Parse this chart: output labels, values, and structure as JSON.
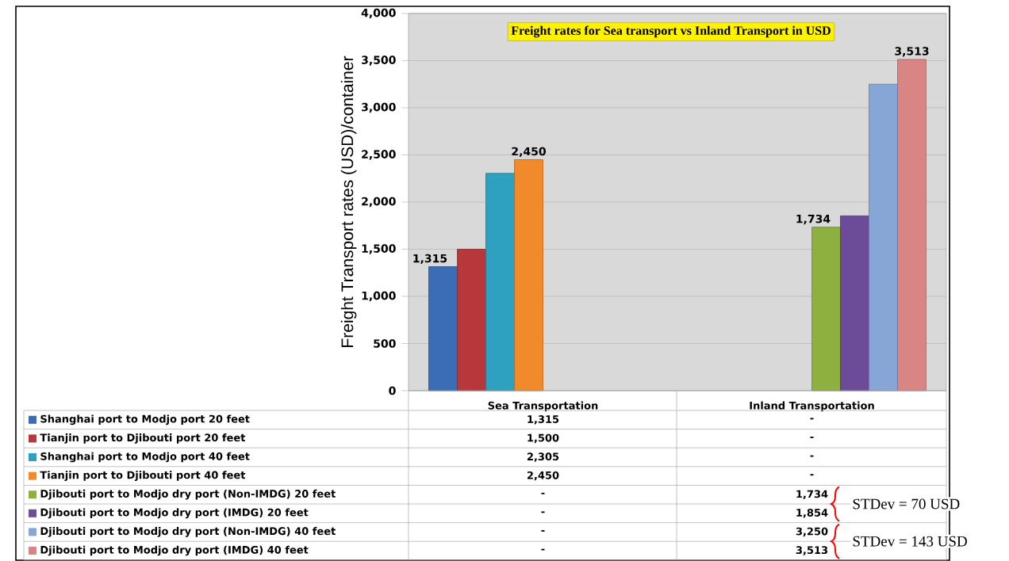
{
  "chart_data": {
    "type": "bar",
    "title": "Freight rates for Sea transport vs Inland Transport in USD",
    "ylabel": "Freight Transport rates (USD)/container",
    "categories": [
      "Sea Transportation",
      "Inland Transportation"
    ],
    "series": [
      {
        "name": "Shanghai port to Modjo port 20 feet",
        "color": "#3a6db5",
        "values": [
          1315,
          null
        ],
        "value_labels": [
          "1,315",
          null
        ]
      },
      {
        "name": "Tianjin port to Djibouti port  20 feet",
        "color": "#b7373a",
        "values": [
          1500,
          null
        ]
      },
      {
        "name": "Shanghai port to Modjo port 40 feet",
        "color": "#2ea0c0",
        "values": [
          2305,
          null
        ]
      },
      {
        "name": "Tianjin port to Djibouti port 40 feet",
        "color": "#f08a2a",
        "values": [
          2450,
          null
        ],
        "value_labels": [
          "2,450",
          null
        ]
      },
      {
        "name": "Djibouti port to Modjo dry port (Non-IMDG) 20 feet",
        "color": "#8db040",
        "values": [
          null,
          1734
        ],
        "value_labels": [
          null,
          "1,734"
        ]
      },
      {
        "name": "Djibouti port to Modjo dry port (IMDG) 20 feet",
        "color": "#6c4c99",
        "values": [
          null,
          1854
        ]
      },
      {
        "name": "Djibouti port to Modjo dry port (Non-IMDG) 40 feet",
        "color": "#86a6d8",
        "values": [
          null,
          3250
        ]
      },
      {
        "name": "Djibouti port to Modjo dry port (IMDG) 40 feet",
        "color": "#d98584",
        "values": [
          null,
          3513
        ],
        "value_labels": [
          null,
          "3,513"
        ]
      }
    ],
    "ylim": [
      0,
      4000
    ],
    "yticks": [
      {
        "value": 0,
        "label": "0"
      },
      {
        "value": 500,
        "label": "500"
      },
      {
        "value": 1000,
        "label": "1,000"
      },
      {
        "value": 1500,
        "label": "1,500"
      },
      {
        "value": 2000,
        "label": "2,000"
      },
      {
        "value": 2500,
        "label": "2,500"
      },
      {
        "value": 3000,
        "label": "3,000"
      },
      {
        "value": 3500,
        "label": "3,500"
      },
      {
        "value": 4000,
        "label": "4,000"
      }
    ],
    "grid": "y",
    "legend": "bottom",
    "annotations": [
      "1,315",
      "-",
      "1,500",
      "-",
      "2,305",
      "-",
      "2,450",
      "-",
      "-",
      "1,734",
      "-",
      "1,854",
      "-",
      "3,250",
      "-",
      "3,513",
      "STDev = 70 USD",
      "STDev = 143 USD"
    ]
  }
}
